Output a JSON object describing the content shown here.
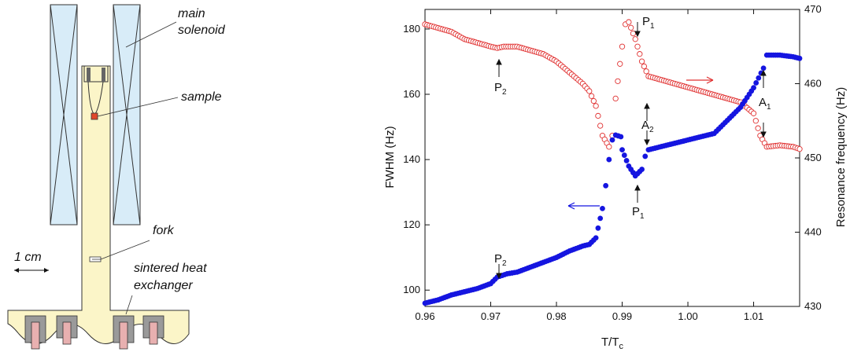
{
  "diagram": {
    "labels": {
      "main_solenoid_line1": "main",
      "main_solenoid_line2": "solenoid",
      "sample": "sample",
      "fork": "fork",
      "scale": "1 cm",
      "heat_exchanger_line1": "sintered heat",
      "heat_exchanger_line2": "exchanger"
    },
    "colors": {
      "solenoid_fill": "#d8ecf8",
      "cell_fill": "#fbf5c8",
      "sample_fill": "#e0482a",
      "sinter_fill": "#e8b0b0",
      "grey": "#9a9a9a"
    }
  },
  "chart_data": {
    "type": "scatter",
    "xlabel": "T/T",
    "xlabel_sub": "c",
    "ylabel_left": "FWHM (Hz)",
    "ylabel_right": "Resonance frequency (Hz)",
    "xlim": [
      0.96,
      1.017
    ],
    "ylim_left": [
      95,
      186
    ],
    "ylim_right": [
      430,
      470
    ],
    "x_ticks": [
      "0.96",
      "0.97",
      "0.98",
      "0.99",
      "1.00",
      "1.01"
    ],
    "x_tick_values": [
      0.96,
      0.97,
      0.98,
      0.99,
      1.0,
      1.01
    ],
    "y_left_ticks": [
      "100",
      "120",
      "140",
      "160",
      "180"
    ],
    "y_left_tick_values": [
      100,
      120,
      140,
      160,
      180
    ],
    "y_right_ticks": [
      "430",
      "440",
      "450",
      "460",
      "470"
    ],
    "y_right_tick_values": [
      430,
      440,
      450,
      460,
      470
    ],
    "series": [
      {
        "axis": "left",
        "color": "#1515e0",
        "marker": "filled",
        "points": [
          [
            0.96,
            96
          ],
          [
            0.962,
            97
          ],
          [
            0.964,
            98.5
          ],
          [
            0.966,
            99.5
          ],
          [
            0.968,
            100.5
          ],
          [
            0.97,
            102
          ],
          [
            0.971,
            104
          ],
          [
            0.9725,
            105
          ],
          [
            0.974,
            105.5
          ],
          [
            0.976,
            107
          ],
          [
            0.978,
            108.5
          ],
          [
            0.98,
            110
          ],
          [
            0.982,
            112
          ],
          [
            0.984,
            113.5
          ],
          [
            0.985,
            114
          ],
          [
            0.986,
            116
          ],
          [
            0.987,
            125
          ],
          [
            0.9875,
            132
          ],
          [
            0.988,
            140
          ],
          [
            0.9885,
            146
          ],
          [
            0.989,
            147.5
          ],
          [
            0.9898,
            147
          ],
          [
            0.99,
            143
          ],
          [
            0.991,
            138
          ],
          [
            0.992,
            135
          ],
          [
            0.993,
            137
          ],
          [
            0.9935,
            141
          ],
          [
            0.994,
            143
          ],
          [
            0.996,
            144
          ],
          [
            0.998,
            145
          ],
          [
            1.0,
            146
          ],
          [
            1.002,
            147
          ],
          [
            1.004,
            148
          ],
          [
            1.006,
            152
          ],
          [
            1.008,
            156
          ],
          [
            1.01,
            162
          ],
          [
            1.0115,
            168
          ],
          [
            1.012,
            172
          ],
          [
            1.014,
            172
          ],
          [
            1.016,
            171.5
          ],
          [
            1.017,
            171
          ]
        ]
      },
      {
        "axis": "right",
        "color": "#e03030",
        "marker": "open",
        "points": [
          [
            0.96,
            468
          ],
          [
            0.962,
            467.5
          ],
          [
            0.964,
            467
          ],
          [
            0.966,
            466
          ],
          [
            0.968,
            465.5
          ],
          [
            0.97,
            465
          ],
          [
            0.971,
            464.8
          ],
          [
            0.972,
            465
          ],
          [
            0.974,
            465
          ],
          [
            0.976,
            464.5
          ],
          [
            0.978,
            464
          ],
          [
            0.98,
            463
          ],
          [
            0.982,
            461.5
          ],
          [
            0.984,
            460
          ],
          [
            0.985,
            459
          ],
          [
            0.986,
            457
          ],
          [
            0.987,
            453
          ],
          [
            0.988,
            451.5
          ],
          [
            0.9885,
            453
          ],
          [
            0.989,
            458
          ],
          [
            0.99,
            465
          ],
          [
            0.9905,
            468
          ],
          [
            0.991,
            468.3
          ],
          [
            0.992,
            466
          ],
          [
            0.993,
            463
          ],
          [
            0.994,
            461
          ],
          [
            0.996,
            460.5
          ],
          [
            0.998,
            460
          ],
          [
            1.0,
            459.5
          ],
          [
            1.002,
            459
          ],
          [
            1.004,
            458.5
          ],
          [
            1.006,
            458
          ],
          [
            1.008,
            457.5
          ],
          [
            1.01,
            456
          ],
          [
            1.011,
            453
          ],
          [
            1.012,
            451.5
          ],
          [
            1.014,
            451.7
          ],
          [
            1.016,
            451.5
          ],
          [
            1.017,
            451.2
          ]
        ]
      }
    ],
    "annotations": [
      {
        "id": "p2_red",
        "text": "P",
        "sub": "2"
      },
      {
        "id": "p1_red",
        "text": "P",
        "sub": "1"
      },
      {
        "id": "a2_red",
        "text": "A",
        "sub": "2"
      },
      {
        "id": "a1_red",
        "text": "A",
        "sub": "1"
      },
      {
        "id": "p2_blue",
        "text": "P",
        "sub": "2"
      },
      {
        "id": "p1_blue",
        "text": "P",
        "sub": "1"
      }
    ]
  }
}
